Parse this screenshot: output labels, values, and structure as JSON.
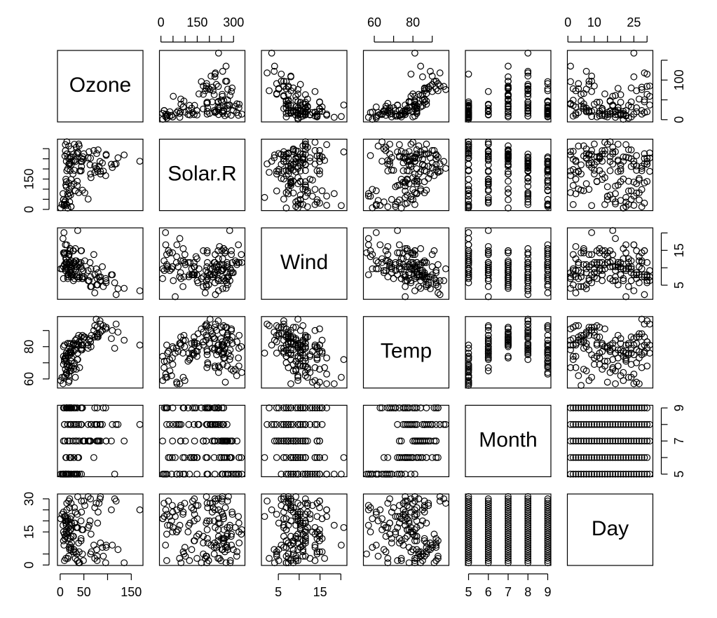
{
  "chart_data": {
    "type": "scatter_matrix",
    "color": "#000000",
    "marker": "open-circle",
    "series": [
      {
        "name": "Ozone",
        "lim": [
          -5.68,
          174.68
        ],
        "values": [
          41,
          36,
          12,
          18,
          null,
          28,
          23,
          19,
          8,
          null,
          7,
          16,
          11,
          14,
          18,
          14,
          34,
          6,
          30,
          11,
          1,
          11,
          4,
          32,
          null,
          null,
          null,
          23,
          45,
          115,
          37,
          null,
          null,
          null,
          null,
          null,
          null,
          29,
          null,
          71,
          39,
          null,
          null,
          23,
          null,
          null,
          21,
          37,
          20,
          12,
          13,
          null,
          null,
          null,
          null,
          null,
          null,
          null,
          null,
          null,
          null,
          135,
          49,
          32,
          null,
          64,
          40,
          77,
          97,
          97,
          85,
          null,
          10,
          27,
          null,
          7,
          48,
          35,
          61,
          79,
          63,
          16,
          null,
          null,
          80,
          108,
          20,
          52,
          82,
          50,
          64,
          59,
          39,
          9,
          16,
          78,
          35,
          66,
          122,
          89,
          110,
          null,
          null,
          44,
          28,
          65,
          null,
          22,
          59,
          23,
          31,
          44,
          21,
          9,
          null,
          45,
          168,
          73,
          null,
          76,
          118,
          84,
          85,
          96,
          78,
          73,
          91,
          47,
          32,
          20,
          23,
          21,
          24,
          44,
          21,
          28,
          9,
          13,
          46,
          18,
          13,
          24,
          16,
          13,
          23,
          36,
          7,
          14,
          30,
          null,
          14,
          18,
          20
        ]
      },
      {
        "name": "Solar.R",
        "lim": [
          -6.08,
          347.08
        ],
        "values": [
          190,
          118,
          149,
          313,
          null,
          null,
          299,
          99,
          19,
          194,
          null,
          256,
          290,
          274,
          65,
          334,
          307,
          78,
          322,
          44,
          8,
          320,
          25,
          92,
          66,
          266,
          null,
          13,
          252,
          223,
          279,
          286,
          287,
          242,
          186,
          220,
          264,
          127,
          273,
          291,
          323,
          259,
          250,
          148,
          332,
          322,
          191,
          284,
          37,
          120,
          137,
          150,
          59,
          91,
          250,
          135,
          127,
          47,
          98,
          31,
          138,
          269,
          248,
          236,
          101,
          175,
          314,
          276,
          267,
          272,
          175,
          139,
          264,
          175,
          291,
          48,
          260,
          274,
          285,
          187,
          220,
          7,
          258,
          295,
          294,
          223,
          81,
          82,
          213,
          275,
          253,
          254,
          83,
          24,
          77,
          null,
          null,
          null,
          255,
          229,
          207,
          222,
          137,
          192,
          273,
          157,
          64,
          71,
          51,
          115,
          244,
          190,
          259,
          36,
          255,
          212,
          238,
          215,
          153,
          203,
          225,
          237,
          188,
          167,
          197,
          183,
          189,
          95,
          92,
          252,
          220,
          230,
          259,
          236,
          259,
          238,
          24,
          112,
          237,
          224,
          27,
          238,
          201,
          238,
          14,
          139,
          49,
          20,
          193,
          145,
          191,
          131,
          223
        ]
      },
      {
        "name": "Wind",
        "lim": [
          0.94,
          21.46
        ],
        "values": [
          7.4,
          8.0,
          12.6,
          11.5,
          14.3,
          14.9,
          8.6,
          13.8,
          20.1,
          8.6,
          6.9,
          9.7,
          9.2,
          10.9,
          13.2,
          11.5,
          12.0,
          18.4,
          11.5,
          9.7,
          9.7,
          16.6,
          9.7,
          12.0,
          16.6,
          14.9,
          8.0,
          12.0,
          14.9,
          5.7,
          7.4,
          8.6,
          9.7,
          16.1,
          9.2,
          8.6,
          14.3,
          9.7,
          6.9,
          13.8,
          11.5,
          10.9,
          9.2,
          8.0,
          13.8,
          11.5,
          14.9,
          20.7,
          9.2,
          11.5,
          10.3,
          6.3,
          1.7,
          4.6,
          6.3,
          8.0,
          8.0,
          10.3,
          11.5,
          14.9,
          8.0,
          4.1,
          9.2,
          9.2,
          10.9,
          4.6,
          10.9,
          5.1,
          6.3,
          5.7,
          7.4,
          8.6,
          14.3,
          14.9,
          14.9,
          14.3,
          6.9,
          10.3,
          6.3,
          5.1,
          11.5,
          6.9,
          9.7,
          11.5,
          8.6,
          8.0,
          8.6,
          12.0,
          7.4,
          7.4,
          7.4,
          9.2,
          6.9,
          13.8,
          7.4,
          6.9,
          7.4,
          4.6,
          4.0,
          10.3,
          8.0,
          8.6,
          11.5,
          11.5,
          11.5,
          9.7,
          11.5,
          10.3,
          6.3,
          7.4,
          10.9,
          10.3,
          15.5,
          14.3,
          12.6,
          9.7,
          3.4,
          8.0,
          5.7,
          9.7,
          2.3,
          6.3,
          6.3,
          6.9,
          5.1,
          2.8,
          4.6,
          7.4,
          15.5,
          10.9,
          10.3,
          10.9,
          9.7,
          14.9,
          15.5,
          6.3,
          10.9,
          11.5,
          6.9,
          13.8,
          10.3,
          10.3,
          8.0,
          12.6,
          9.2,
          10.3,
          10.3,
          16.6,
          6.9,
          13.2,
          14.3,
          8.0,
          11.5
        ]
      },
      {
        "name": "Temp",
        "lim": [
          54.36,
          98.64
        ],
        "values": [
          67,
          72,
          74,
          62,
          56,
          66,
          65,
          59,
          61,
          69,
          74,
          69,
          66,
          68,
          58,
          64,
          66,
          57,
          68,
          62,
          59,
          73,
          61,
          61,
          57,
          58,
          57,
          67,
          81,
          79,
          76,
          78,
          74,
          67,
          84,
          85,
          79,
          82,
          87,
          90,
          87,
          93,
          92,
          82,
          80,
          79,
          77,
          72,
          65,
          73,
          76,
          77,
          76,
          76,
          76,
          75,
          78,
          73,
          80,
          77,
          83,
          84,
          85,
          81,
          84,
          83,
          83,
          88,
          92,
          92,
          89,
          82,
          73,
          81,
          91,
          80,
          81,
          82,
          84,
          87,
          85,
          74,
          81,
          82,
          86,
          85,
          82,
          86,
          88,
          86,
          83,
          81,
          81,
          81,
          82,
          86,
          85,
          87,
          89,
          90,
          90,
          92,
          86,
          86,
          82,
          80,
          79,
          77,
          79,
          76,
          78,
          78,
          77,
          72,
          75,
          79,
          81,
          86,
          88,
          97,
          94,
          96,
          94,
          91,
          92,
          93,
          93,
          87,
          84,
          80,
          78,
          75,
          73,
          81,
          76,
          77,
          71,
          71,
          78,
          67,
          76,
          68,
          82,
          64,
          71,
          81,
          69,
          63,
          70,
          77,
          75,
          76,
          68
        ]
      },
      {
        "name": "Month",
        "lim": [
          4.84,
          9.16
        ],
        "values": [
          5,
          5,
          5,
          5,
          5,
          5,
          5,
          5,
          5,
          5,
          5,
          5,
          5,
          5,
          5,
          5,
          5,
          5,
          5,
          5,
          5,
          5,
          5,
          5,
          5,
          5,
          5,
          5,
          5,
          5,
          5,
          6,
          6,
          6,
          6,
          6,
          6,
          6,
          6,
          6,
          6,
          6,
          6,
          6,
          6,
          6,
          6,
          6,
          6,
          6,
          6,
          6,
          6,
          6,
          6,
          6,
          6,
          6,
          6,
          6,
          6,
          7,
          7,
          7,
          7,
          7,
          7,
          7,
          7,
          7,
          7,
          7,
          7,
          7,
          7,
          7,
          7,
          7,
          7,
          7,
          7,
          7,
          7,
          7,
          7,
          7,
          7,
          7,
          7,
          7,
          7,
          7,
          8,
          8,
          8,
          8,
          8,
          8,
          8,
          8,
          8,
          8,
          8,
          8,
          8,
          8,
          8,
          8,
          8,
          8,
          8,
          8,
          8,
          8,
          8,
          8,
          8,
          8,
          8,
          8,
          8,
          8,
          8,
          9,
          9,
          9,
          9,
          9,
          9,
          9,
          9,
          9,
          9,
          9,
          9,
          9,
          9,
          9,
          9,
          9,
          9,
          9,
          9,
          9,
          9,
          9,
          9,
          9,
          9,
          9,
          9,
          9,
          9
        ]
      },
      {
        "name": "Day",
        "lim": [
          -0.2,
          32.2
        ],
        "values": [
          1,
          2,
          3,
          4,
          5,
          6,
          7,
          8,
          9,
          10,
          11,
          12,
          13,
          14,
          15,
          16,
          17,
          18,
          19,
          20,
          21,
          22,
          23,
          24,
          25,
          26,
          27,
          28,
          29,
          30,
          31,
          1,
          2,
          3,
          4,
          5,
          6,
          7,
          8,
          9,
          10,
          11,
          12,
          13,
          14,
          15,
          16,
          17,
          18,
          19,
          20,
          21,
          22,
          23,
          24,
          25,
          26,
          27,
          28,
          29,
          30,
          1,
          2,
          3,
          4,
          5,
          6,
          7,
          8,
          9,
          10,
          11,
          12,
          13,
          14,
          15,
          16,
          17,
          18,
          19,
          20,
          21,
          22,
          23,
          24,
          25,
          26,
          27,
          28,
          29,
          30,
          31,
          1,
          2,
          3,
          4,
          5,
          6,
          7,
          8,
          9,
          10,
          11,
          12,
          13,
          14,
          15,
          16,
          17,
          18,
          19,
          20,
          21,
          22,
          23,
          24,
          25,
          26,
          27,
          28,
          29,
          30,
          31,
          1,
          2,
          3,
          4,
          5,
          6,
          7,
          8,
          9,
          10,
          11,
          12,
          13,
          14,
          15,
          16,
          17,
          18,
          19,
          20,
          21,
          22,
          23,
          24,
          25,
          26,
          27,
          28,
          29,
          30
        ]
      }
    ],
    "axes": [
      {
        "series": 0,
        "side": "bottom",
        "ticks": [
          0,
          50,
          {
            "value": 100,
            "label": null
          },
          150
        ]
      },
      {
        "series": 0,
        "side": "right",
        "ticks": [
          0,
          {
            "value": 50,
            "label": null
          },
          100,
          {
            "value": 150,
            "label": null
          }
        ]
      },
      {
        "series": 1,
        "side": "top",
        "ticks": [
          0,
          {
            "value": 50,
            "label": null
          },
          {
            "value": 100,
            "label": null
          },
          150,
          {
            "value": 200,
            "label": null
          },
          {
            "value": 250,
            "label": null
          },
          300
        ]
      },
      {
        "series": 1,
        "side": "left",
        "ticks": [
          0,
          {
            "value": 50,
            "label": null
          },
          {
            "value": 100,
            "label": null
          },
          150,
          {
            "value": 200,
            "label": null
          },
          {
            "value": 250,
            "label": null
          },
          {
            "value": 300,
            "label": null
          }
        ]
      },
      {
        "series": 2,
        "side": "bottom",
        "ticks": [
          5,
          {
            "value": 10,
            "label": null
          },
          15,
          {
            "value": 20,
            "label": null
          }
        ]
      },
      {
        "series": 2,
        "side": "right",
        "ticks": [
          5,
          {
            "value": 10,
            "label": null
          },
          15,
          {
            "value": 20,
            "label": null
          }
        ]
      },
      {
        "series": 3,
        "side": "top",
        "ticks": [
          60,
          {
            "value": 70,
            "label": null
          },
          80,
          {
            "value": 90,
            "label": null
          }
        ]
      },
      {
        "series": 3,
        "side": "left",
        "ticks": [
          60,
          {
            "value": 70,
            "label": null
          },
          80,
          {
            "value": 90,
            "label": null
          }
        ]
      },
      {
        "series": 4,
        "side": "bottom",
        "ticks": [
          5,
          6,
          7,
          8,
          9
        ]
      },
      {
        "series": 4,
        "side": "right",
        "ticks": [
          5,
          {
            "value": 6,
            "label": null
          },
          7,
          {
            "value": 8,
            "label": null
          },
          9
        ]
      },
      {
        "series": 5,
        "side": "top",
        "ticks": [
          0,
          {
            "value": 5,
            "label": null
          },
          10,
          {
            "value": 15,
            "label": null
          },
          {
            "value": 20,
            "label": null
          },
          25,
          {
            "value": 30,
            "label": null
          }
        ]
      },
      {
        "series": 5,
        "side": "left",
        "ticks": [
          0,
          {
            "value": 5,
            "label": null
          },
          15,
          {
            "value": 20,
            "label": null
          },
          {
            "value": 25,
            "label": null
          },
          30
        ]
      }
    ]
  }
}
